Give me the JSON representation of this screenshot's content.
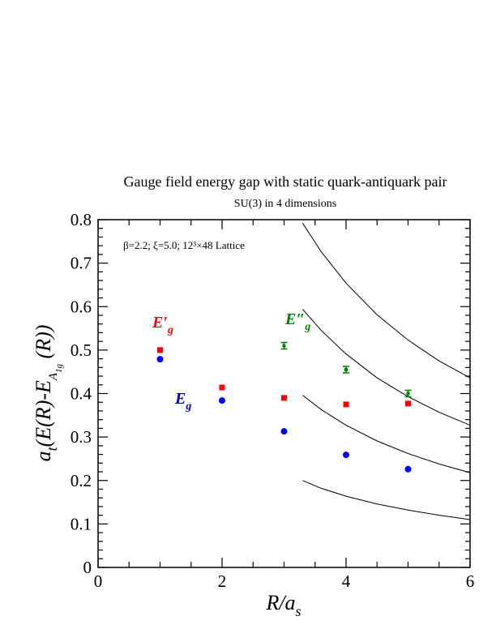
{
  "chart_data": {
    "type": "scatter",
    "title": "Gauge field energy gap with static quark-antiquark pair",
    "subtitle": "SU(3) in 4 dimensions",
    "xlabel": "R/a_s",
    "ylabel": "a_t(E(R)-E_A1g(R))",
    "xlim": [
      0,
      6
    ],
    "ylim": [
      0,
      0.8
    ],
    "x_ticks": [
      "0",
      "2",
      "4",
      "6"
    ],
    "y_ticks": [
      "0",
      "0.1",
      "0.2",
      "0.3",
      "0.4",
      "0.5",
      "0.6",
      "0.7",
      "0.8"
    ],
    "annotation": "β=2.2; ξ=5.0; 12³×48 Lattice",
    "grid": false,
    "series": [
      {
        "name": "E_g",
        "label_main": "E",
        "label_sub": "g",
        "color": "#0000ff",
        "marker": "circle",
        "points": [
          {
            "x": 1,
            "y": 0.479
          },
          {
            "x": 2,
            "y": 0.384
          },
          {
            "x": 3,
            "y": 0.313
          },
          {
            "x": 4,
            "y": 0.259
          },
          {
            "x": 5,
            "y": 0.226
          }
        ]
      },
      {
        "name": "E'_g",
        "label_main": "E′",
        "label_sub": "g",
        "color": "#ff0000",
        "marker": "square",
        "points": [
          {
            "x": 1,
            "y": 0.5
          },
          {
            "x": 2,
            "y": 0.414
          },
          {
            "x": 3,
            "y": 0.39
          },
          {
            "x": 4,
            "y": 0.375
          },
          {
            "x": 5,
            "y": 0.377
          }
        ]
      },
      {
        "name": "E''_g",
        "label_main": "E″",
        "label_sub": "g",
        "color": "#008000",
        "marker": "errorbar",
        "points": [
          {
            "x": 3,
            "y": 0.51
          },
          {
            "x": 4,
            "y": 0.455
          },
          {
            "x": 5,
            "y": 0.4
          }
        ]
      }
    ],
    "curves": [
      {
        "name": "curve-1",
        "points": [
          [
            3.3,
            0.2
          ],
          [
            3.6,
            0.182
          ],
          [
            4.0,
            0.164
          ],
          [
            4.5,
            0.146
          ],
          [
            5.0,
            0.132
          ],
          [
            5.5,
            0.12
          ],
          [
            6.0,
            0.11
          ]
        ]
      },
      {
        "name": "curve-2",
        "points": [
          [
            3.3,
            0.396
          ],
          [
            3.6,
            0.363
          ],
          [
            4.0,
            0.327
          ],
          [
            4.5,
            0.291
          ],
          [
            5.0,
            0.262
          ],
          [
            5.5,
            0.238
          ],
          [
            6.0,
            0.218
          ]
        ]
      },
      {
        "name": "curve-3",
        "points": [
          [
            3.3,
            0.594
          ],
          [
            3.6,
            0.545
          ],
          [
            4.0,
            0.491
          ],
          [
            4.5,
            0.436
          ],
          [
            5.0,
            0.393
          ],
          [
            5.5,
            0.357
          ],
          [
            6.0,
            0.327
          ]
        ]
      },
      {
        "name": "curve-4",
        "points": [
          [
            3.3,
            0.792
          ],
          [
            3.6,
            0.726
          ],
          [
            4.0,
            0.654
          ],
          [
            4.5,
            0.581
          ],
          [
            5.0,
            0.523
          ],
          [
            5.5,
            0.475
          ],
          [
            6.0,
            0.436
          ]
        ]
      }
    ]
  }
}
